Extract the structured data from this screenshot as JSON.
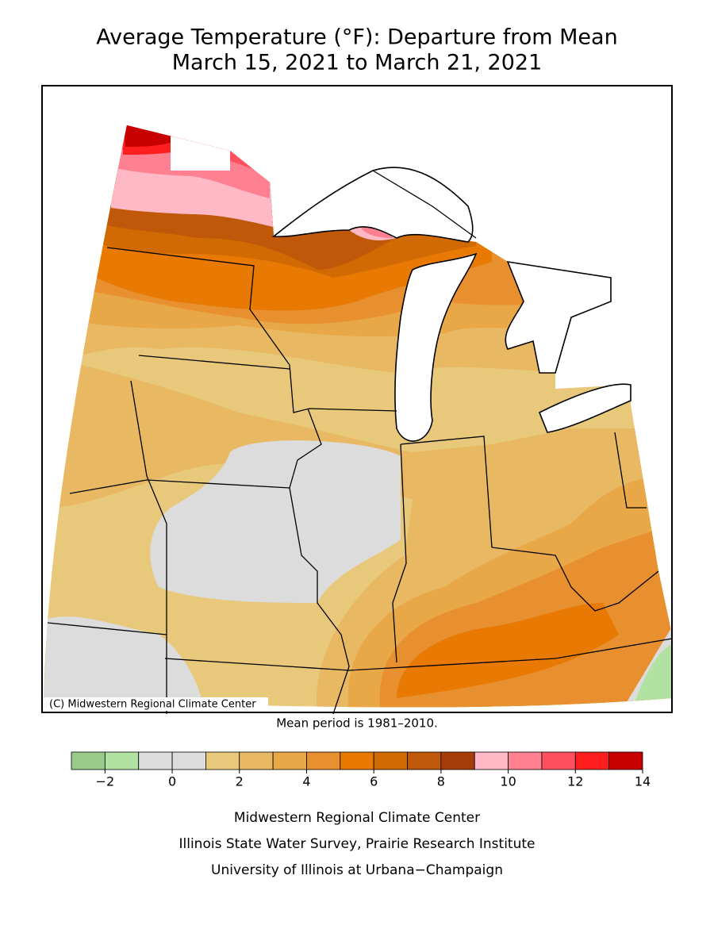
{
  "title": [
    "Average Temperature (°F): Departure from Mean",
    "March 15, 2021 to March 21, 2021"
  ],
  "credit": "(C) Midwestern Regional Climate Center",
  "mean_period": "Mean period is 1981–2010.",
  "colorbar": {
    "bounds": [
      -3,
      -2,
      -1,
      0,
      1,
      2,
      3,
      4,
      5,
      6,
      7,
      8,
      9,
      10,
      11,
      12,
      13,
      14
    ],
    "colors": [
      "#9acb8a",
      "#b2e2a2",
      "#dcdcdc",
      "#dcdcdc",
      "#e8c97c",
      "#e8b862",
      "#e8a848",
      "#e89030",
      "#e87a04",
      "#d26a04",
      "#bf5808",
      "#a63c08",
      "#ffb8c6",
      "#ff8090",
      "#ff5060",
      "#ff1e1e",
      "#c80000"
    ],
    "ticks": [
      {
        "value": -2,
        "label": "−2"
      },
      0,
      2,
      4,
      6,
      8,
      10,
      12,
      14
    ]
  },
  "footer": [
    "Midwestern Regional Climate Center",
    "Illinois State Water Survey, Prairie Research Institute",
    "University of Illinois at Urbana−Champaign"
  ]
}
